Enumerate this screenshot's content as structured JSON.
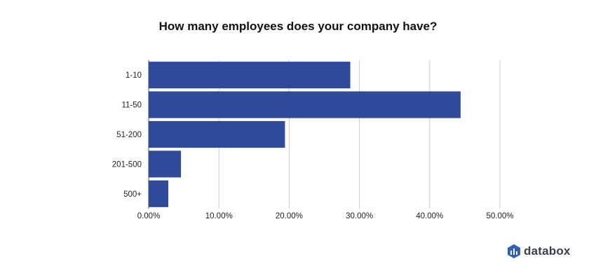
{
  "chart_data": {
    "type": "bar",
    "orientation": "horizontal",
    "title": "How many employees does your company have?",
    "categories": [
      "1-10",
      "11-50",
      "51-200",
      "201-500",
      "500+"
    ],
    "values": [
      28.7,
      44.4,
      19.4,
      4.6,
      2.8
    ],
    "xlim": [
      0,
      50
    ],
    "xticks": [
      "0.00%",
      "10.00%",
      "20.00%",
      "30.00%",
      "40.00%",
      "50.00%"
    ],
    "grid": true,
    "bar_color": "#2f4a9a"
  },
  "brand": {
    "name": "databox",
    "color": "#3a4049",
    "icon_color": "#2f62b0"
  }
}
